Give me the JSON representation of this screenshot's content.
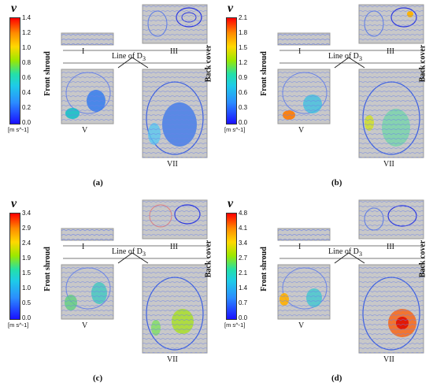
{
  "velocity_symbol": "v",
  "unit_label": "[m s^-1]",
  "panels": [
    {
      "id": "a",
      "caption": "(a)",
      "ticks": [
        "1.4",
        "1.2",
        "1.0",
        "0.8",
        "0.6",
        "0.4",
        "0.2",
        "0.0"
      ],
      "side_left": "Front shroud",
      "side_right": "",
      "regions": {
        "r1": "I",
        "r3": "III",
        "r5": "V",
        "r7": "VII"
      },
      "line_label": "Line of D",
      "line_sub": "3"
    },
    {
      "id": "b",
      "caption": "(b)",
      "ticks": [
        "2.1",
        "1.8",
        "1.5",
        "1.2",
        "0.9",
        "0.6",
        "0.3",
        "0.0"
      ],
      "side_left": "Back cover",
      "side_right": "Back cover",
      "side_left2": "Front shroud",
      "regions": {
        "r1": "I",
        "r3": "III",
        "r5": "V",
        "r7": "VII"
      },
      "line_label": "Line of D",
      "line_sub": "3"
    },
    {
      "id": "c",
      "caption": "(c)",
      "ticks": [
        "3.4",
        "2.9",
        "2.4",
        "1.9",
        "1.5",
        "1.0",
        "0.5",
        "0.0"
      ],
      "side_left": "Front shroud",
      "side_right": "",
      "regions": {
        "r1": "I",
        "r3": "III",
        "r5": "V",
        "r7": "VII"
      },
      "line_label": "Line of D",
      "line_sub": "3"
    },
    {
      "id": "d",
      "caption": "(d)",
      "ticks": [
        "4.8",
        "4.1",
        "3.4",
        "2.7",
        "2.1",
        "1.4",
        "0.7",
        "0.0"
      ],
      "side_left": "Back cover",
      "side_right": "Back cover",
      "side_left2": "Front shroud",
      "regions": {
        "r1": "I",
        "r3": "III",
        "r5": "V",
        "r7": "VII"
      },
      "line_label": "Line of D",
      "line_sub": "3"
    }
  ]
}
